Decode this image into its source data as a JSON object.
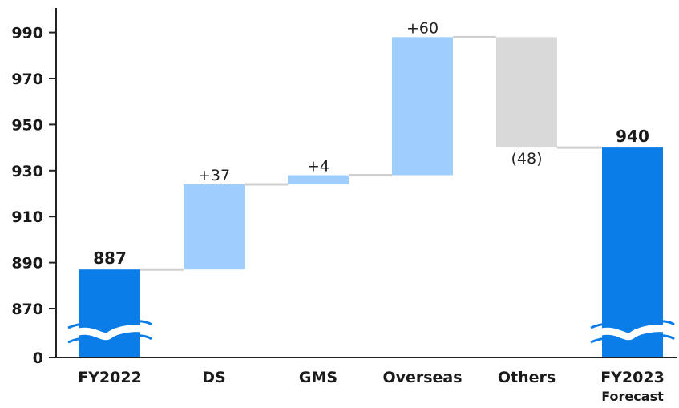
{
  "chart_data": {
    "type": "waterfall",
    "title": "",
    "xlabel": "",
    "ylabel": "",
    "axis_break": true,
    "y_ticks": [
      "0",
      "870",
      "890",
      "910",
      "930",
      "950",
      "970",
      "990"
    ],
    "ylim": [
      860,
      995
    ],
    "steps": [
      {
        "category": "FY2022",
        "sublabel": "",
        "kind": "total",
        "value": 887,
        "label": "887",
        "color": "#0a7de8"
      },
      {
        "category": "DS",
        "sublabel": "",
        "kind": "delta",
        "value": 37,
        "label": "+37",
        "color": "#9fcdfc"
      },
      {
        "category": "GMS",
        "sublabel": "",
        "kind": "delta",
        "value": 4,
        "label": "+4",
        "color": "#9fcdfc"
      },
      {
        "category": "Overseas",
        "sublabel": "",
        "kind": "delta",
        "value": 60,
        "label": "+60",
        "color": "#9fcdfc"
      },
      {
        "category": "Others",
        "sublabel": "",
        "kind": "delta",
        "value": -48,
        "label": "(48)",
        "color": "#d9d9d9"
      },
      {
        "category": "FY2023",
        "sublabel": "Forecast",
        "kind": "total",
        "value": 940,
        "label": "940",
        "color": "#0a7de8"
      }
    ],
    "connector_color": "#cfcfcf",
    "grid": false
  }
}
